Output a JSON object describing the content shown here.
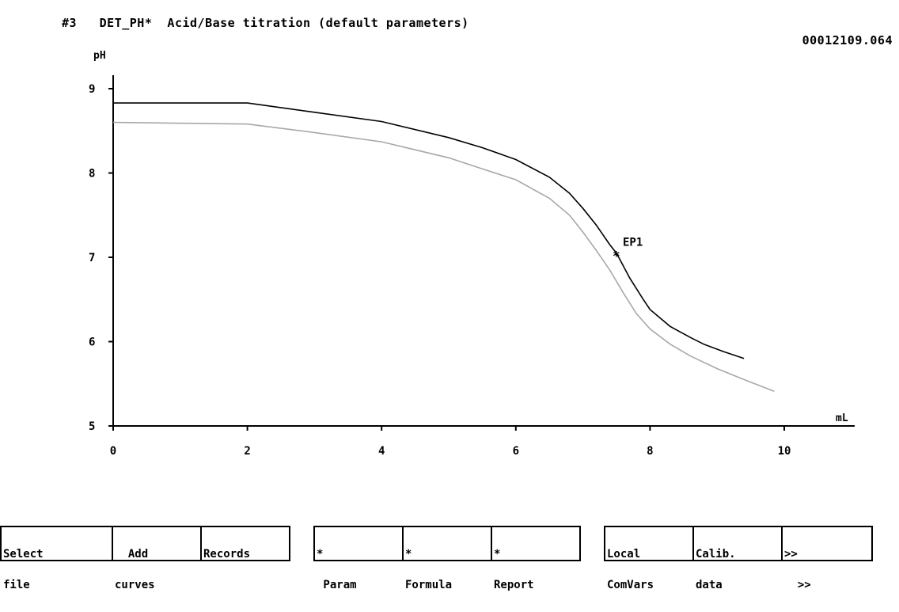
{
  "header": {
    "title": "#3   DET_PH*  Acid/Base titration (default parameters)",
    "file_id": "00012109.064"
  },
  "chart_data": {
    "type": "line",
    "title": "#3   DET_PH*  Acid/Base titration (default parameters)",
    "xlabel": "mL",
    "ylabel": "pH",
    "xlim": [
      0,
      11
    ],
    "ylim": [
      5,
      9.2
    ],
    "x_ticks": [
      0,
      2,
      4,
      6,
      8,
      10
    ],
    "x_tick_labels": [
      "0",
      "2",
      "4",
      "6",
      "8",
      "10"
    ],
    "y_ticks": [
      5,
      6,
      7,
      8,
      9
    ],
    "y_tick_labels": [
      "5",
      "6",
      "7",
      "8",
      "9"
    ],
    "grid": false,
    "series": [
      {
        "color": "#000000",
        "x": [
          0,
          2.0,
          3.0,
          4.0,
          5.0,
          5.5,
          6.0,
          6.5,
          6.8,
          7.0,
          7.2,
          7.4,
          7.5,
          7.7,
          7.9,
          8.0,
          8.3,
          8.6,
          8.8,
          9.1,
          9.4
        ],
        "y": [
          8.83,
          8.83,
          8.72,
          8.61,
          8.42,
          8.3,
          8.16,
          7.95,
          7.76,
          7.58,
          7.38,
          7.15,
          7.05,
          6.75,
          6.5,
          6.38,
          6.18,
          6.05,
          5.97,
          5.88,
          5.8
        ]
      },
      {
        "color": "#a8a8a8",
        "x": [
          0,
          2.0,
          3.0,
          4.0,
          5.0,
          5.5,
          6.0,
          6.5,
          6.8,
          7.0,
          7.2,
          7.4,
          7.6,
          7.8,
          8.0,
          8.3,
          8.6,
          9.0,
          9.4,
          9.85
        ],
        "y": [
          8.6,
          8.58,
          8.48,
          8.37,
          8.18,
          8.05,
          7.92,
          7.7,
          7.5,
          7.3,
          7.08,
          6.85,
          6.58,
          6.33,
          6.15,
          5.97,
          5.83,
          5.68,
          5.55,
          5.41
        ]
      }
    ],
    "annotations": [
      {
        "text": "EP1",
        "x": 7.5,
        "y": 7.06,
        "marker": "*"
      }
    ]
  },
  "fkeys": [
    {
      "name": "fkey-select-file",
      "line1": "Select",
      "line2": "file"
    },
    {
      "name": "fkey-add-curves",
      "line1": "  Add",
      "line2": "curves"
    },
    {
      "name": "fkey-records",
      "line1": "Records",
      "line2": ""
    },
    {
      "name": "fkey-param",
      "line1": "*",
      "line2": " Param"
    },
    {
      "name": "fkey-formula",
      "line1": "*",
      "line2": "Formula"
    },
    {
      "name": "fkey-report",
      "line1": "*",
      "line2": "Report"
    },
    {
      "name": "fkey-local-comvars",
      "line1": "Local",
      "line2": "ComVars"
    },
    {
      "name": "fkey-calib-data",
      "line1": "Calib.",
      "line2": "data"
    },
    {
      "name": "fkey-more",
      "line1": ">>",
      "line2": "  >>"
    }
  ]
}
